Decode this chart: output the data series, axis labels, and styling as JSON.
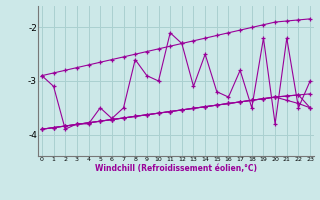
{
  "xlabel": "Windchill (Refroidissement éolien,°C)",
  "x": [
    0,
    1,
    2,
    3,
    4,
    5,
    6,
    7,
    8,
    9,
    10,
    11,
    12,
    13,
    14,
    15,
    16,
    17,
    18,
    19,
    20,
    21,
    22,
    23
  ],
  "line_zigzag": [
    -2.9,
    -3.1,
    -3.9,
    -3.8,
    -3.8,
    -3.5,
    -3.7,
    -3.5,
    -2.6,
    -2.9,
    -3.0,
    -2.1,
    -2.3,
    -3.1,
    -2.5,
    -3.2,
    -3.3,
    -2.8,
    -3.5,
    -2.2,
    -3.8,
    -2.2,
    -3.5,
    -3.0
  ],
  "line_trend": [
    -2.9,
    -2.85,
    -2.8,
    -2.75,
    -2.7,
    -2.65,
    -2.6,
    -2.55,
    -2.5,
    -2.45,
    -2.4,
    -2.35,
    -2.3,
    -2.25,
    -2.2,
    -2.15,
    -2.1,
    -2.05,
    -2.0,
    -1.95,
    -1.9,
    -1.88,
    -1.86,
    -1.84
  ],
  "line_smooth1": [
    -3.9,
    -3.87,
    -3.84,
    -3.81,
    -3.78,
    -3.75,
    -3.72,
    -3.69,
    -3.66,
    -3.63,
    -3.6,
    -3.57,
    -3.54,
    -3.51,
    -3.48,
    -3.45,
    -3.42,
    -3.39,
    -3.36,
    -3.33,
    -3.3,
    -3.28,
    -3.26,
    -3.24
  ],
  "line_smooth2": [
    -3.9,
    -3.87,
    -3.84,
    -3.81,
    -3.78,
    -3.75,
    -3.72,
    -3.69,
    -3.66,
    -3.63,
    -3.6,
    -3.57,
    -3.54,
    -3.51,
    -3.48,
    -3.45,
    -3.42,
    -3.39,
    -3.36,
    -3.33,
    -3.3,
    -3.28,
    -3.26,
    -3.5
  ],
  "line_smooth3": [
    -3.9,
    -3.87,
    -3.84,
    -3.81,
    -3.78,
    -3.75,
    -3.72,
    -3.69,
    -3.66,
    -3.63,
    -3.6,
    -3.57,
    -3.54,
    -3.51,
    -3.48,
    -3.45,
    -3.42,
    -3.39,
    -3.36,
    -3.33,
    -3.3,
    -3.36,
    -3.42,
    -3.5
  ],
  "line_color": "#990099",
  "bg_color": "#cce8e8",
  "grid_color": "#aad0d0",
  "ylim": [
    -4.4,
    -1.6
  ],
  "yticks": [
    -4.0,
    -3.0,
    -2.0
  ],
  "xlim": [
    -0.3,
    23.3
  ]
}
